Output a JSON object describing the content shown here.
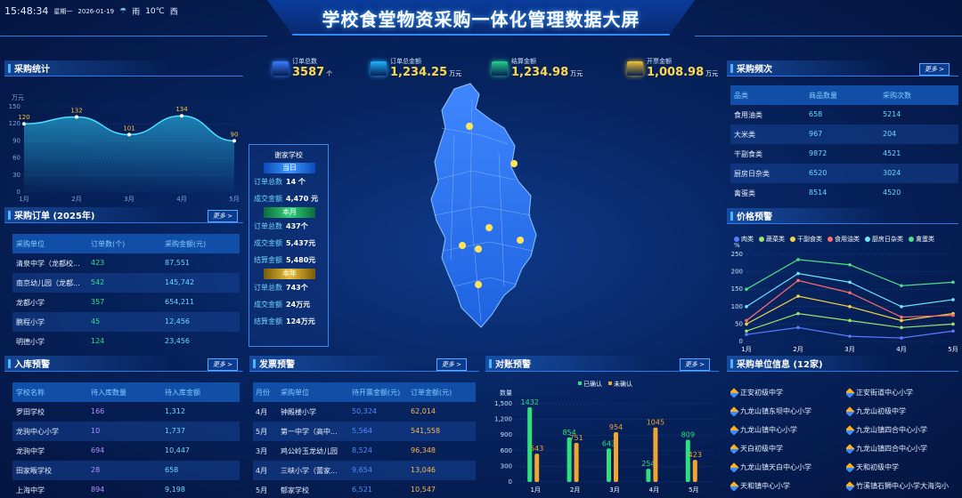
{
  "header": {
    "time": "15:48:34",
    "weekday": "星期一",
    "date": "2026-01-19",
    "weather": "雨",
    "temp": "10℃",
    "wind": "西",
    "title": "学校食堂物资采购一体化管理数据大屏"
  },
  "kpis": [
    {
      "label": "订单总数",
      "value": "3587",
      "unit": "个",
      "color": "#3b7bff"
    },
    {
      "label": "订单总金额",
      "value": "1,234.25",
      "unit": "万元",
      "color": "#1db4ff"
    },
    {
      "label": "结算金额",
      "value": "1,234.98",
      "unit": "万元",
      "color": "#25d08a"
    },
    {
      "label": "开票金额",
      "value": "1,008.98",
      "unit": "万元",
      "color": "#f2c230"
    }
  ],
  "stats": {
    "title": "采购统计",
    "chart_data": {
      "type": "area",
      "x": [
        "1月",
        "2月",
        "3月",
        "4月",
        "5月"
      ],
      "values": [
        120,
        132,
        101,
        134,
        90
      ],
      "ylabel": "万元",
      "ylim": [
        0,
        150
      ],
      "yticks": [
        0,
        30,
        60,
        90,
        120,
        150
      ]
    }
  },
  "orders": {
    "title": "采购订单 (2025年)",
    "more": "更多 >",
    "headers": [
      "采购单位",
      "订单数(个)",
      "采购金额(元)"
    ],
    "rows": [
      [
        "清泉中学（龙都校...",
        "423",
        "87,551"
      ],
      [
        "南京幼儿园（龙都...",
        "542",
        "145,742"
      ],
      [
        "龙都小学",
        "357",
        "654,211"
      ],
      [
        "鹏程小学",
        "45",
        "12,456"
      ],
      [
        "明德小学",
        "124",
        "23,456"
      ]
    ]
  },
  "inbound": {
    "title": "入库预警",
    "more": "更多 >",
    "headers": [
      "学校名称",
      "待入库数量",
      "待入库金额"
    ],
    "rows": [
      [
        "罗田学校",
        "166",
        "1,312"
      ],
      [
        "龙驹中心小学",
        "10",
        "1,737"
      ],
      [
        "龙驹中学",
        "694",
        "10,447"
      ],
      [
        "田家畈学校",
        "28",
        "658"
      ],
      [
        "上海中学",
        "894",
        "9,198"
      ]
    ]
  },
  "info": {
    "school": "谢家学校",
    "today": {
      "tag": "当日",
      "lines": [
        {
          "label": "订单总数",
          "value": "14 个"
        },
        {
          "label": "成交金额",
          "value": "4,470 元"
        }
      ]
    },
    "month": {
      "tag": "本月",
      "lines": [
        {
          "label": "订单总数",
          "value": "437个"
        },
        {
          "label": "成交金额",
          "value": "5,437元"
        },
        {
          "label": "结算金额",
          "value": "5,480元"
        }
      ]
    },
    "year": {
      "tag": "本年",
      "lines": [
        {
          "label": "订单总数",
          "value": "743个"
        },
        {
          "label": "成交金额",
          "value": "24万元"
        },
        {
          "label": "结算金额",
          "value": "124万元"
        }
      ]
    }
  },
  "invoice": {
    "title": "发票预警",
    "more": "更多 >",
    "headers": [
      "月份",
      "采购单位",
      "待开票金额(元)",
      "订单金额(元)"
    ],
    "rows": [
      [
        "4月",
        "钟殿楼小学",
        "50,324",
        "62,014"
      ],
      [
        "5月",
        "第一中学（高中...",
        "5,564",
        "541,558"
      ],
      [
        "3月",
        "鸡公岭玉龙幼儿园",
        "8,524",
        "96,348"
      ],
      [
        "4月",
        "三峡小学（蕾家...",
        "9,654",
        "13,046"
      ],
      [
        "5月",
        "郁家学校",
        "6,521",
        "10,547"
      ]
    ]
  },
  "reconcile": {
    "title": "对账预警",
    "more": "更多 >",
    "ylabel": "数量",
    "chart_data": {
      "type": "bar",
      "categories": [
        "1月",
        "2月",
        "3月",
        "4月",
        "5月"
      ],
      "series": [
        {
          "name": "已确认",
          "values": [
            1432,
            854,
            643,
            254,
            809
          ],
          "color": "#2ee07e"
        },
        {
          "name": "未确认",
          "values": [
            543,
            751,
            954,
            1045,
            423
          ],
          "color": "#f0a531"
        }
      ],
      "ylim": [
        0,
        1500
      ],
      "yticks": [
        0,
        300,
        600,
        900,
        1200,
        1500
      ],
      "yticklabels": [
        "0",
        "300",
        "600",
        "900",
        "1,200",
        "1,500"
      ]
    }
  },
  "freq": {
    "title": "采购频次",
    "more": "更多 >",
    "headers": [
      "品类",
      "商品数量",
      "采购次数"
    ],
    "rows": [
      [
        "食用油类",
        "658",
        "5214"
      ],
      [
        "大米类",
        "967",
        "204"
      ],
      [
        "干副食类",
        "9872",
        "4521"
      ],
      [
        "厨房日杂类",
        "6520",
        "3024"
      ],
      [
        "禽蛋类",
        "8514",
        "4520"
      ]
    ]
  },
  "price": {
    "title": "价格预警",
    "ylabel": "%",
    "chart_data": {
      "type": "line",
      "x": [
        "1月",
        "2月",
        "3月",
        "4月",
        "5月"
      ],
      "ylim": [
        0,
        250
      ],
      "yticks": [
        0,
        50,
        100,
        150,
        200,
        250
      ],
      "series": [
        {
          "name": "肉类",
          "values": [
            20,
            40,
            15,
            10,
            30
          ],
          "color": "#5a7bff"
        },
        {
          "name": "蔬菜类",
          "values": [
            30,
            80,
            60,
            40,
            50
          ],
          "color": "#9be36a"
        },
        {
          "name": "干副食类",
          "values": [
            50,
            130,
            100,
            60,
            80
          ],
          "color": "#f5d547"
        },
        {
          "name": "食用油类",
          "values": [
            60,
            175,
            140,
            70,
            75
          ],
          "color": "#ff6b6b"
        },
        {
          "name": "厨房日杂类",
          "values": [
            100,
            195,
            170,
            100,
            120
          ],
          "color": "#6fe3ff"
        },
        {
          "name": "禽蛋类",
          "values": [
            150,
            235,
            220,
            160,
            170
          ],
          "color": "#4fdc8a"
        }
      ]
    }
  },
  "units": {
    "title": "采购单位信息 (12家)",
    "items": [
      "正安初级中学",
      "正安街道中心小学",
      "九龙山镇东坝中心小学",
      "九龙山初级中学",
      "九龙山镇中心小学",
      "九龙山镇四合中心小学",
      "天白初级中学",
      "九龙山镇四合中心小学",
      "九龙山镇天白中心小学",
      "天和初级中学",
      "天和镇中心小学",
      "竹溪镇石狮中心小学大海沟小"
    ]
  },
  "map": {
    "labels": []
  }
}
